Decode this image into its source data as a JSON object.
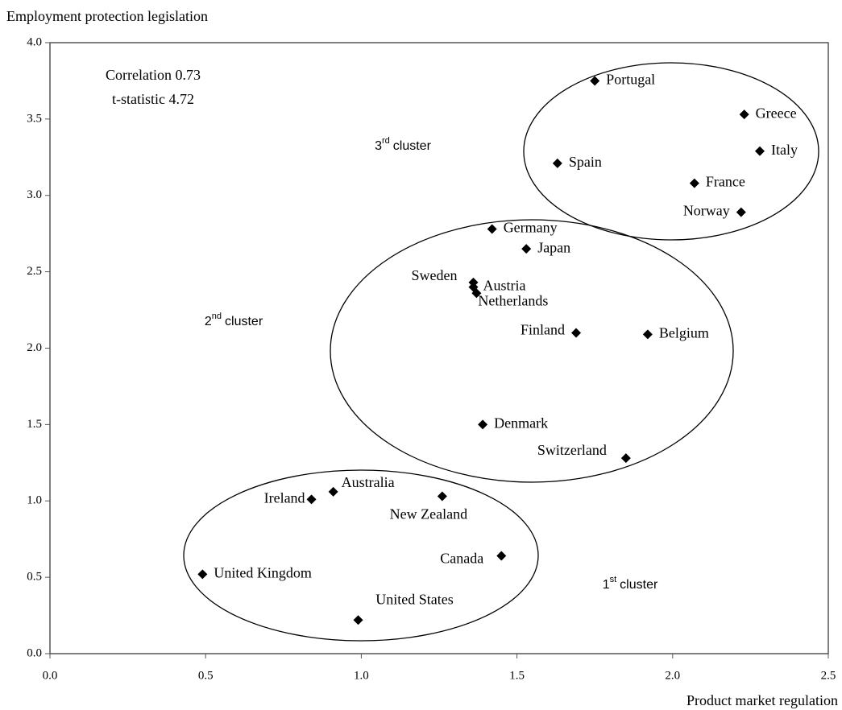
{
  "chart_data": {
    "type": "scatter",
    "x_label": "Product market regulation",
    "y_label": "Employment protection legislation",
    "annotations": [
      "Correlation 0.73",
      "t-statistic 4.72"
    ],
    "clusters": [
      {
        "number": "3",
        "suffix": "rd",
        "text": "cluster"
      },
      {
        "number": "2",
        "suffix": "nd",
        "text": "cluster"
      },
      {
        "number": "1",
        "suffix": "st",
        "text": "cluster"
      }
    ],
    "xlim": [
      0,
      2.5
    ],
    "ylim": [
      0,
      4
    ],
    "xticks": [
      {
        "value": 0,
        "label": "0.0"
      },
      {
        "value": 0.5,
        "label": "0.5"
      },
      {
        "value": 1,
        "label": "1.0"
      },
      {
        "value": 1.5,
        "label": "1.5"
      },
      {
        "value": 2,
        "label": "2.0"
      },
      {
        "value": 2.5,
        "label": "2.5"
      }
    ],
    "yticks": [
      {
        "value": 0,
        "label": "0.0"
      },
      {
        "value": 0.5,
        "label": "0.5"
      },
      {
        "value": 1,
        "label": "1.0"
      },
      {
        "value": 1.5,
        "label": "1.5"
      },
      {
        "value": 2,
        "label": "2.0"
      },
      {
        "value": 2.5,
        "label": "2.5"
      },
      {
        "value": 3,
        "label": "3.0"
      },
      {
        "value": 3.5,
        "label": "3.5"
      },
      {
        "value": 4,
        "label": "4.0"
      }
    ],
    "grid": false,
    "color": "#000000",
    "labels": [
      "Portugal",
      "Greece",
      "Italy",
      "Spain",
      "France",
      "Norway",
      "Germany",
      "Japan",
      "Sweden",
      "Austria",
      "Netherlands",
      "Finland",
      "Belgium",
      "Denmark",
      "Switzerland",
      "Ireland",
      "Australia",
      "New Zealand",
      "Canada",
      "United Kingdom",
      "United States"
    ],
    "x": [
      1.75,
      2.23,
      2.28,
      1.63,
      2.07,
      2.22,
      1.42,
      1.53,
      1.36,
      1.36,
      1.37,
      1.69,
      1.92,
      1.39,
      1.85,
      0.84,
      0.91,
      1.26,
      1.45,
      0.49,
      0.99
    ],
    "values": [
      3.75,
      3.53,
      3.29,
      3.21,
      3.08,
      2.89,
      2.78,
      2.65,
      2.43,
      2.4,
      2.36,
      2.1,
      2.09,
      1.5,
      1.28,
      1.01,
      1.06,
      1.03,
      0.64,
      0.52,
      0.22
    ]
  }
}
